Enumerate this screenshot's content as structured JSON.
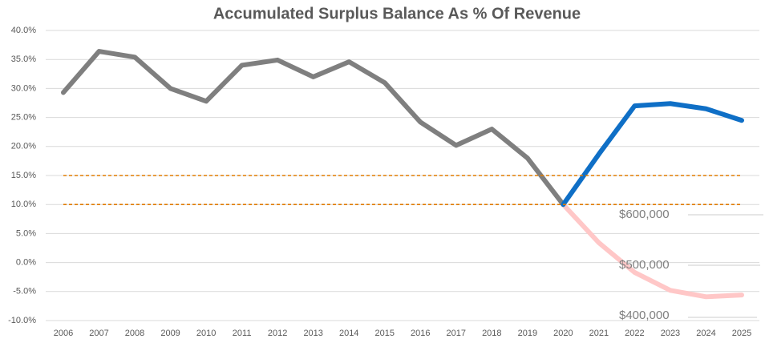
{
  "chart_data": {
    "type": "line",
    "title": "Accumulated Surplus Balance As % Of Revenue",
    "categories": [
      "2006",
      "2007",
      "2008",
      "2009",
      "2010",
      "2011",
      "2012",
      "2013",
      "2014",
      "2015",
      "2016",
      "2017",
      "2018",
      "2019",
      "2020",
      "2021",
      "2022",
      "2023",
      "2024",
      "2025"
    ],
    "series": [
      {
        "color": "#7f7f7f",
        "values": [
          29.3,
          36.4,
          35.4,
          30.0,
          27.8,
          34.0,
          34.9,
          32.0,
          34.6,
          31.0,
          24.2,
          20.2,
          23.0,
          18.0,
          10.0,
          null,
          null,
          null,
          null,
          null
        ]
      },
      {
        "color": "#ffc7c7",
        "values": [
          null,
          null,
          null,
          null,
          null,
          null,
          null,
          null,
          null,
          null,
          null,
          null,
          null,
          null,
          10.0,
          3.4,
          -1.7,
          -4.8,
          -5.9,
          -5.6
        ]
      },
      {
        "color": "#0f6fc6",
        "values": [
          null,
          null,
          null,
          null,
          null,
          null,
          null,
          null,
          null,
          null,
          null,
          null,
          null,
          null,
          10.0,
          18.7,
          27.0,
          27.4,
          26.5,
          24.5
        ]
      },
      {
        "color": "#e07b00",
        "dashed": true,
        "values": [
          15,
          15,
          15,
          15,
          15,
          15,
          15,
          15,
          15,
          15,
          15,
          15,
          15,
          15,
          15,
          15,
          15,
          15,
          15,
          15
        ]
      },
      {
        "color": "#e07b00",
        "dashed": true,
        "values": [
          10,
          10,
          10,
          10,
          10,
          10,
          10,
          10,
          10,
          10,
          10,
          10,
          10,
          10,
          10,
          10,
          10,
          10,
          10,
          10
        ]
      }
    ],
    "ylim": [
      -10,
      40
    ],
    "yticks": [
      {
        "value": -10,
        "label": "-10.0%"
      },
      {
        "value": -5,
        "label": "-5.0%"
      },
      {
        "value": 0,
        "label": "0.0%"
      },
      {
        "value": 5,
        "label": "5.0%"
      },
      {
        "value": 10,
        "label": "10.0%"
      },
      {
        "value": 15,
        "label": "15.0%"
      },
      {
        "value": 20,
        "label": "20.0%"
      },
      {
        "value": 25,
        "label": "25.0%"
      },
      {
        "value": 30,
        "label": "30.0%"
      },
      {
        "value": 35,
        "label": "35.0%"
      },
      {
        "value": 40,
        "label": "40.0%"
      }
    ],
    "grid": true,
    "overlay_labels": [
      "$600,000",
      "$500,000",
      "$400,000"
    ]
  }
}
